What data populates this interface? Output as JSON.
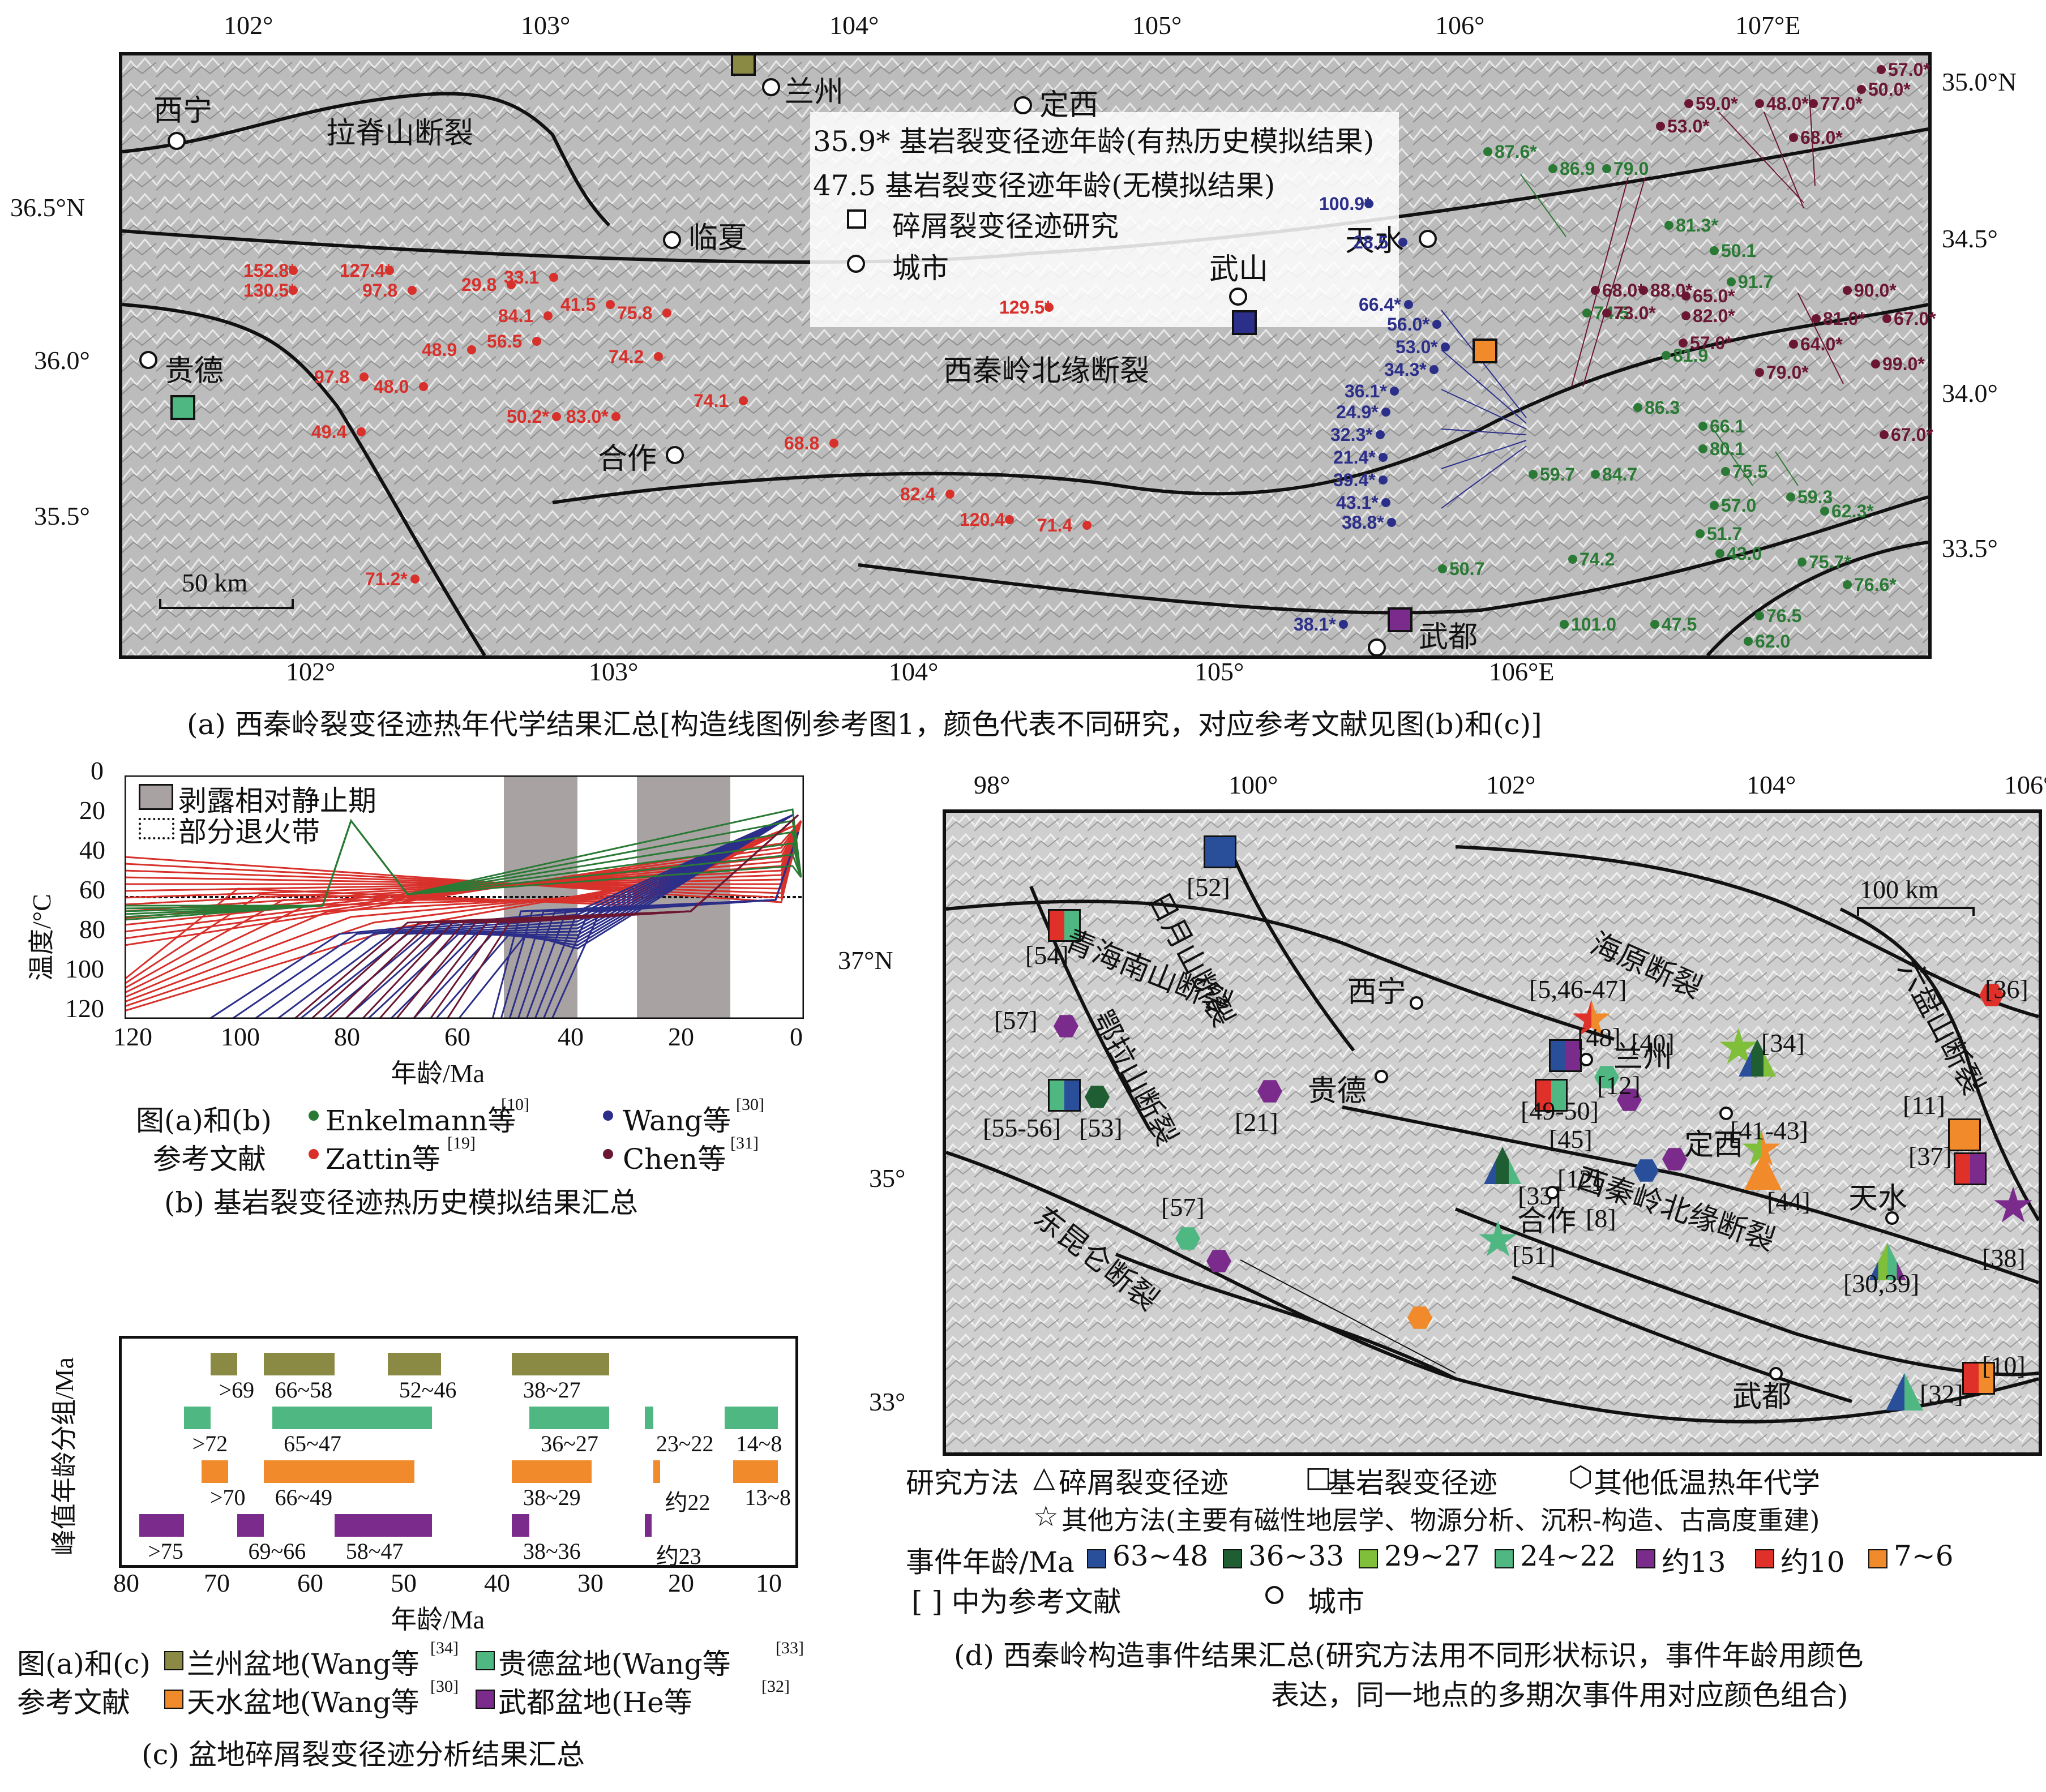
{
  "colors": {
    "enkelmann": "#2a7a35",
    "zattin": "#d8302b",
    "wang": "#2c2f8a",
    "chen": "#6b1733",
    "lanzhou": "#8a8a45",
    "guide": "#4fb882",
    "tianshui": "#f08a2a",
    "wudu": "#7b2b8c"
  },
  "panel_a": {
    "top_ticks": [
      "102°",
      "103°",
      "104°",
      "105°",
      "106°",
      "107°E"
    ],
    "bottom_ticks": [
      "102°",
      "103°",
      "104°",
      "105°",
      "106°E"
    ],
    "left_ticks": [
      "36.5°N",
      "36.0°",
      "35.5°"
    ],
    "right_ticks": [
      "35.0°N",
      "34.5°",
      "34.0°",
      "33.5°"
    ],
    "cities": [
      "西宁",
      "兰州",
      "定西",
      "临夏",
      "贵德",
      "合作",
      "武山",
      "天水",
      "武都"
    ],
    "faults": [
      "拉脊山断裂",
      "西秦岭北缘断裂"
    ],
    "legend": {
      "bedrock_model": "35.9* 基岩裂变径迹年龄(有热历史模拟结果)",
      "bedrock_nomodel": "47.5  基岩裂变径迹年龄(无模拟结果)",
      "detrital": "碎屑裂变径迹研究",
      "city": "城市"
    },
    "scale": "50 km",
    "ages_zattin": [
      "152.8*",
      "127.4*",
      "130.5*",
      "97.8",
      "29.8",
      "33.1",
      "84.1",
      "41.5",
      "75.8",
      "48.9",
      "56.5",
      "74.2",
      "97.8",
      "48.0",
      "49.4",
      "50.2*",
      "83.0*",
      "74.1",
      "68.8",
      "129.5*",
      "82.4",
      "120.4",
      "71.4",
      "71.2*"
    ],
    "ages_wang": [
      "100.9*",
      "28.5",
      "66.4*",
      "56.0*",
      "53.0*",
      "34.3*",
      "36.1*",
      "24.9*",
      "32.3*",
      "21.4*",
      "39.4*",
      "43.1*",
      "38.8*",
      "38.1*"
    ],
    "ages_enkelmann": [
      "87.6*",
      "86.9",
      "79.0",
      "81.3*",
      "50.1",
      "91.7",
      "74.5",
      "81.9",
      "86.3",
      "66.1",
      "80.1",
      "75.5",
      "57.0",
      "59.3",
      "62.3*",
      "59.7",
      "84.7",
      "50.7",
      "74.2",
      "101.0",
      "47.5",
      "51.7",
      "43.0",
      "75.7*",
      "76.6*",
      "76.5",
      "62.0"
    ],
    "ages_chen": [
      "57.0*",
      "59.0*",
      "48.0*",
      "77.0*",
      "50.0*",
      "53.0*",
      "68.0*",
      "88.0*",
      "68.0*",
      "65.0*",
      "73.0*",
      "82.0*",
      "57.0*",
      "90.0*",
      "81.0*",
      "67.0*",
      "64.0*",
      "79.0*",
      "99.0*",
      "67.0*"
    ],
    "caption": "(a) 西秦岭裂变径迹热年代学结果汇总[构造线图例参考图1，颜色代表不同研究，对应参考文献见图(b)和(c)]"
  },
  "panel_b": {
    "ylabel": "温度/°C",
    "xlabel": "年龄/Ma",
    "yticks": [
      "0",
      "20",
      "40",
      "60",
      "80",
      "100",
      "120"
    ],
    "xticks": [
      "120",
      "100",
      "80",
      "60",
      "40",
      "20",
      "0"
    ],
    "legend_quiet": "剥露相对静止期",
    "legend_pat": "部分退火带",
    "refs_title_1": "图(a)和(b)",
    "refs_title_2": "参考文献",
    "ref1": "Enkelmann等",
    "ref1_sup": "[10]",
    "ref2": "Wang等",
    "ref2_sup": "[30]",
    "ref3": "Zattin等",
    "ref3_sup": "[19]",
    "ref4": "Chen等",
    "ref4_sup": "[31]",
    "caption": "(b) 基岩裂变径迹热历史模拟结果汇总"
  },
  "panel_c": {
    "ylabel": "峰值年龄分组/Ma",
    "xlabel": "年龄/Ma",
    "xticks": [
      "80",
      "70",
      "60",
      "50",
      "40",
      "30",
      "20",
      "10"
    ],
    "rows": [
      {
        "labels": [
          ">69",
          "66~58",
          "52~46",
          "38~27"
        ]
      },
      {
        "labels": [
          ">72",
          "65~47",
          "36~27",
          "23~22",
          "14~8"
        ]
      },
      {
        "labels": [
          ">70",
          "66~49",
          "38~29",
          "约22",
          "13~8"
        ]
      },
      {
        "labels": [
          ">75",
          "69~66",
          "58~47",
          "38~36",
          "约23"
        ]
      }
    ],
    "refs_title_1": "图(a)和(c)",
    "refs_title_2": "参考文献",
    "ref1": "兰州盆地(Wang等",
    "ref1_sup": "[34]",
    "ref2": "贵德盆地(Wang等",
    "ref2_sup": "[33]",
    "ref3": "天水盆地(Wang等",
    "ref3_sup": "[30]",
    "ref4": "武都盆地(He等",
    "ref4_sup": "[32]",
    "caption": "(c) 盆地碎屑裂变径迹分析结果汇总"
  },
  "panel_d": {
    "top_ticks": [
      "98°",
      "100°",
      "102°",
      "104°",
      "106°E"
    ],
    "left_ticks": [
      "37°N",
      "35°",
      "33°"
    ],
    "scale": "100 km",
    "cities": [
      "西宁",
      "贵德",
      "兰州",
      "定西",
      "合作",
      "天水",
      "武都"
    ],
    "faults": [
      "日月山断裂",
      "青海南山断裂",
      "鄂拉山断裂",
      "海原断裂",
      "六盘山断裂",
      "西秦岭北缘断裂",
      "东昆仑断裂"
    ],
    "refs": [
      "[52]",
      "[54]",
      "[57]",
      "[55-56]",
      "[53]",
      "[21]",
      "[5,46-47]",
      "[48]",
      "[49-50]",
      "[12]",
      "[40]",
      "[34]",
      "[41-43]",
      "[45]",
      "[12]",
      "[8]",
      "[44]",
      "[33]",
      "[51]",
      "[57]",
      "[36]",
      "[11]",
      "[37]",
      "[38]",
      "[30,39]",
      "[10]",
      "[32]"
    ],
    "legend": {
      "methods_title": "研究方法",
      "m1": "碎屑裂变径迹",
      "m2": "基岩裂变径迹",
      "m3": "其他低温热年代学",
      "m4": "其他方法(主要有磁性地层学、物源分析、沉积-构造、古高度重建)",
      "ages_title": "事件年龄/Ma",
      "a1": "63~48",
      "a2": "36~33",
      "a3": "29~27",
      "a4": "24~22",
      "a5": "约13",
      "a6": "约10",
      "a7": "7~6",
      "refnote": "[ ] 中为参考文献",
      "city": "城市"
    },
    "age_colors": [
      "#2a4f9a",
      "#1f5e33",
      "#7fbf3a",
      "#4fb882",
      "#7b2b8c",
      "#e0302a",
      "#f08a2a"
    ],
    "caption_1": "(d) 西秦岭构造事件结果汇总(研究方法用不同形状标识，事件年龄用颜色",
    "caption_2": "表达，同一地点的多期次事件用对应颜色组合)"
  }
}
